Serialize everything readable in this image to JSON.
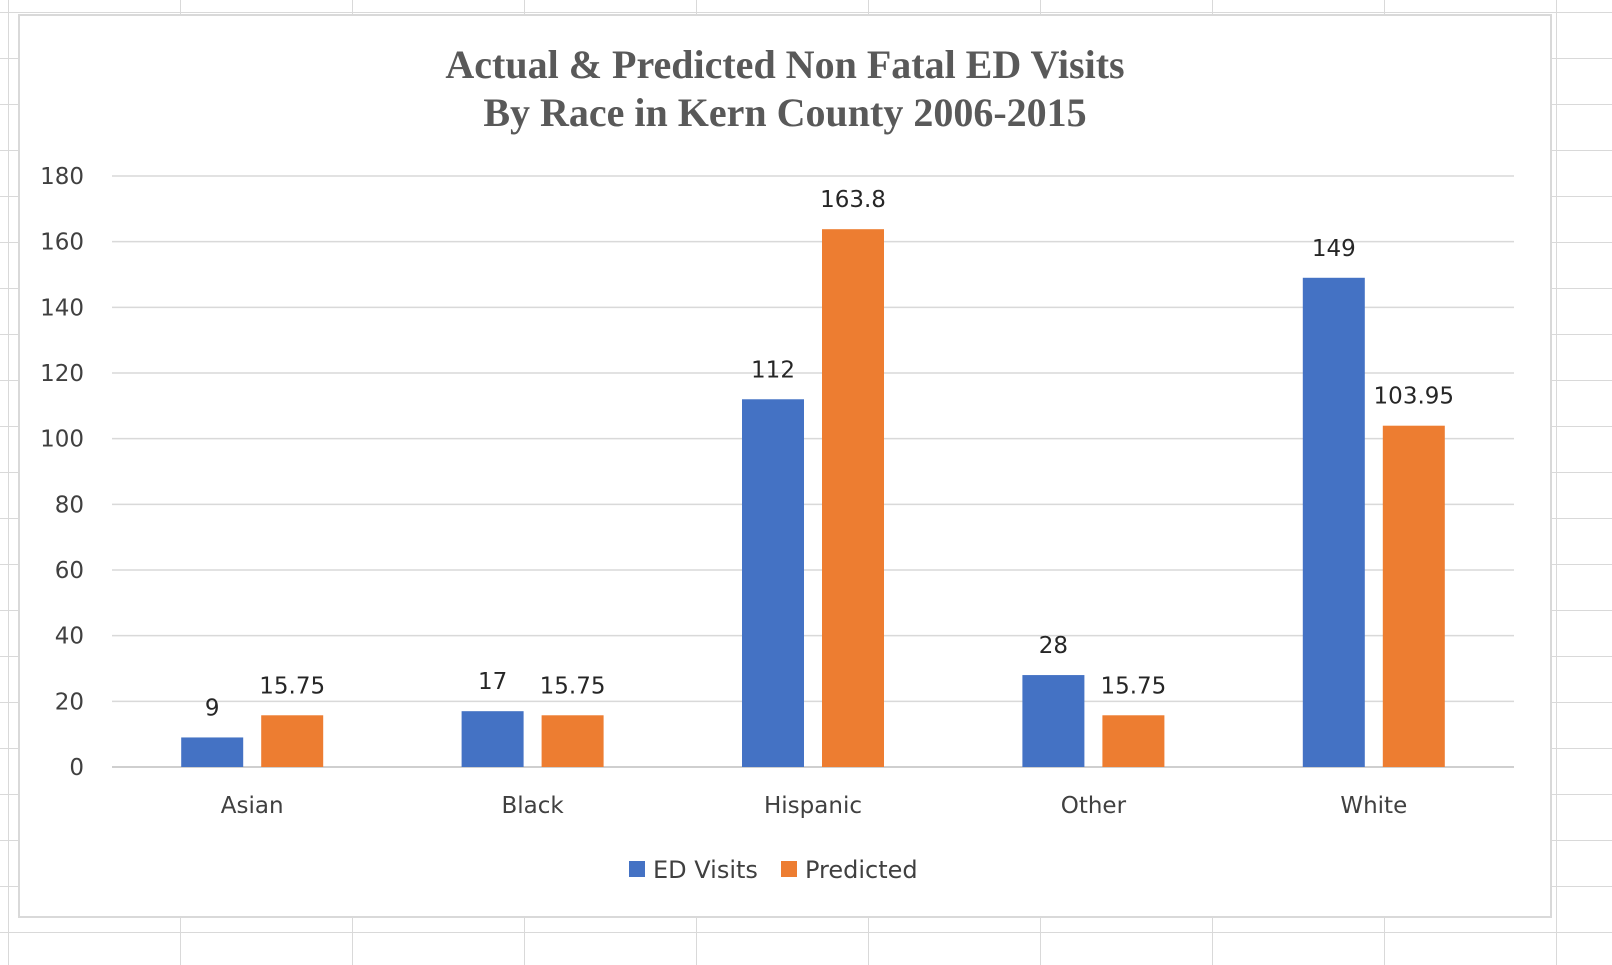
{
  "chart_data": {
    "type": "bar",
    "title_lines": [
      "Actual & Predicted Non Fatal ED Visits",
      "By Race in Kern County 2006-2015"
    ],
    "categories": [
      "Asian",
      "Black",
      "Hispanic",
      "Other",
      "White"
    ],
    "series": [
      {
        "name": "ED Visits",
        "color": "#4472C4",
        "values": [
          9,
          17,
          112,
          28,
          149
        ],
        "labels": [
          "9",
          "17",
          "112",
          "28",
          "149"
        ]
      },
      {
        "name": "Predicted",
        "color": "#ED7D31",
        "values": [
          15.75,
          15.75,
          163.8,
          15.75,
          103.95
        ],
        "labels": [
          "15.75",
          "15.75",
          "163.8",
          "15.75",
          "103.95"
        ]
      }
    ],
    "ylim": [
      0,
      180
    ],
    "yticks": [
      "0",
      "20",
      "40",
      "60",
      "80",
      "100",
      "120",
      "140",
      "160",
      "180"
    ],
    "xlabel": "",
    "ylabel": "",
    "grid": true,
    "legend_position": "bottom"
  }
}
